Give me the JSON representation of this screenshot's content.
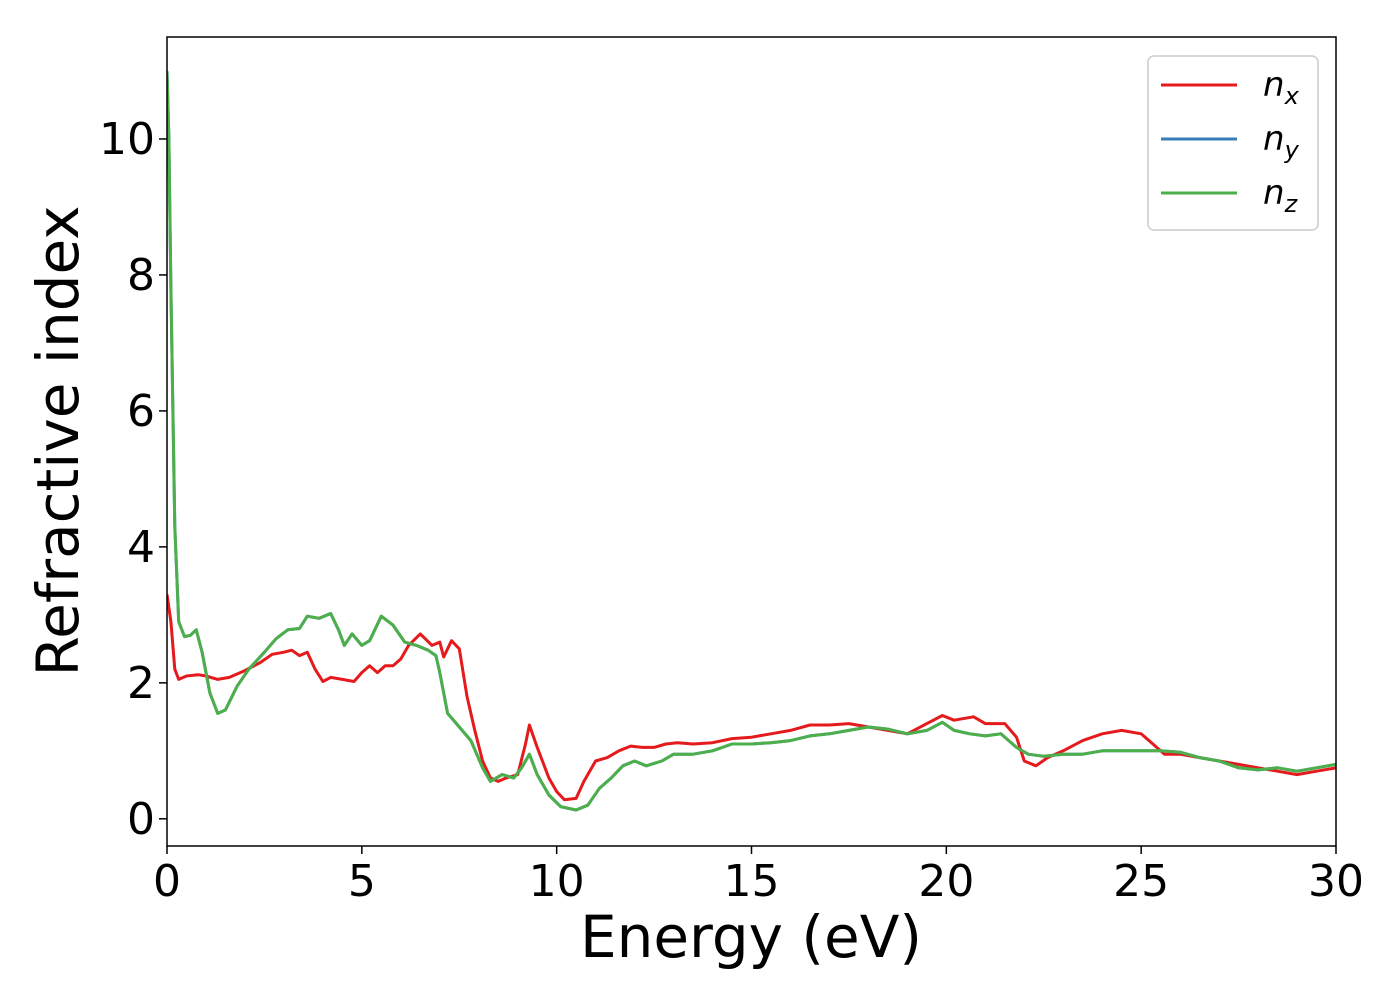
{
  "chart_data": {
    "type": "line",
    "title": "",
    "xlabel": "Energy (eV)",
    "ylabel": "Refractive index",
    "xlim": [
      0,
      30
    ],
    "ylim": [
      -0.4,
      11.5
    ],
    "xticks": [
      0,
      5,
      10,
      15,
      20,
      25,
      30
    ],
    "yticks": [
      0,
      2,
      4,
      6,
      8,
      10
    ],
    "grid": false,
    "legend_position": "top-right",
    "series": [
      {
        "name": "n_x",
        "legend_main": "n",
        "legend_sub": "x",
        "color": "#e41a1c",
        "points": [
          [
            0,
            3.3
          ],
          [
            0.1,
            2.9
          ],
          [
            0.2,
            2.2
          ],
          [
            0.3,
            2.05
          ],
          [
            0.5,
            2.1
          ],
          [
            0.8,
            2.12
          ],
          [
            1,
            2.1
          ],
          [
            1.3,
            2.05
          ],
          [
            1.6,
            2.08
          ],
          [
            2,
            2.18
          ],
          [
            2.4,
            2.3
          ],
          [
            2.7,
            2.42
          ],
          [
            3.0,
            2.45
          ],
          [
            3.2,
            2.48
          ],
          [
            3.4,
            2.4
          ],
          [
            3.6,
            2.45
          ],
          [
            3.8,
            2.2
          ],
          [
            4.0,
            2.02
          ],
          [
            4.2,
            2.08
          ],
          [
            4.5,
            2.05
          ],
          [
            4.8,
            2.02
          ],
          [
            5.0,
            2.15
          ],
          [
            5.2,
            2.25
          ],
          [
            5.4,
            2.15
          ],
          [
            5.6,
            2.25
          ],
          [
            5.8,
            2.25
          ],
          [
            6.0,
            2.35
          ],
          [
            6.2,
            2.55
          ],
          [
            6.5,
            2.72
          ],
          [
            6.8,
            2.55
          ],
          [
            7.0,
            2.6
          ],
          [
            7.1,
            2.38
          ],
          [
            7.3,
            2.62
          ],
          [
            7.5,
            2.5
          ],
          [
            7.7,
            1.8
          ],
          [
            7.9,
            1.3
          ],
          [
            8.1,
            0.85
          ],
          [
            8.3,
            0.6
          ],
          [
            8.5,
            0.55
          ],
          [
            8.7,
            0.6
          ],
          [
            9.0,
            0.65
          ],
          [
            9.2,
            1.1
          ],
          [
            9.3,
            1.38
          ],
          [
            9.5,
            1.05
          ],
          [
            9.8,
            0.6
          ],
          [
            10.0,
            0.4
          ],
          [
            10.2,
            0.28
          ],
          [
            10.5,
            0.3
          ],
          [
            10.7,
            0.55
          ],
          [
            11.0,
            0.85
          ],
          [
            11.3,
            0.9
          ],
          [
            11.6,
            1.0
          ],
          [
            11.9,
            1.07
          ],
          [
            12.2,
            1.05
          ],
          [
            12.5,
            1.05
          ],
          [
            12.8,
            1.1
          ],
          [
            13.1,
            1.12
          ],
          [
            13.5,
            1.1
          ],
          [
            14.0,
            1.12
          ],
          [
            14.5,
            1.18
          ],
          [
            15.0,
            1.2
          ],
          [
            15.5,
            1.25
          ],
          [
            16.0,
            1.3
          ],
          [
            16.5,
            1.38
          ],
          [
            17.0,
            1.38
          ],
          [
            17.5,
            1.4
          ],
          [
            18.0,
            1.35
          ],
          [
            18.5,
            1.3
          ],
          [
            19.0,
            1.25
          ],
          [
            19.5,
            1.4
          ],
          [
            19.9,
            1.52
          ],
          [
            20.2,
            1.45
          ],
          [
            20.7,
            1.5
          ],
          [
            21.0,
            1.4
          ],
          [
            21.5,
            1.4
          ],
          [
            21.8,
            1.2
          ],
          [
            22.0,
            0.85
          ],
          [
            22.3,
            0.78
          ],
          [
            22.6,
            0.9
          ],
          [
            23.0,
            1.0
          ],
          [
            23.5,
            1.15
          ],
          [
            24.0,
            1.25
          ],
          [
            24.5,
            1.3
          ],
          [
            25.0,
            1.25
          ],
          [
            25.3,
            1.1
          ],
          [
            25.6,
            0.95
          ],
          [
            26.0,
            0.95
          ],
          [
            26.5,
            0.9
          ],
          [
            27.0,
            0.85
          ],
          [
            27.5,
            0.8
          ],
          [
            28.0,
            0.75
          ],
          [
            28.5,
            0.7
          ],
          [
            29.0,
            0.65
          ],
          [
            29.5,
            0.7
          ],
          [
            30.0,
            0.75
          ]
        ]
      },
      {
        "name": "n_y",
        "legend_main": "n",
        "legend_sub": "y",
        "color": "#377eb8",
        "points": [
          [
            0,
            11.0
          ],
          [
            0.05,
            10.0
          ],
          [
            0.1,
            7.8
          ],
          [
            0.2,
            4.3
          ],
          [
            0.3,
            2.9
          ],
          [
            0.45,
            2.68
          ],
          [
            0.6,
            2.7
          ],
          [
            0.75,
            2.78
          ],
          [
            0.9,
            2.45
          ],
          [
            1.1,
            1.85
          ],
          [
            1.3,
            1.55
          ],
          [
            1.5,
            1.6
          ],
          [
            1.8,
            1.95
          ],
          [
            2.1,
            2.2
          ],
          [
            2.5,
            2.45
          ],
          [
            2.8,
            2.65
          ],
          [
            3.1,
            2.78
          ],
          [
            3.4,
            2.8
          ],
          [
            3.6,
            2.98
          ],
          [
            3.9,
            2.95
          ],
          [
            4.2,
            3.02
          ],
          [
            4.4,
            2.78
          ],
          [
            4.55,
            2.55
          ],
          [
            4.75,
            2.72
          ],
          [
            5.0,
            2.55
          ],
          [
            5.2,
            2.62
          ],
          [
            5.5,
            2.98
          ],
          [
            5.8,
            2.85
          ],
          [
            6.1,
            2.6
          ],
          [
            6.4,
            2.55
          ],
          [
            6.7,
            2.48
          ],
          [
            6.9,
            2.4
          ],
          [
            7.0,
            2.15
          ],
          [
            7.2,
            1.55
          ],
          [
            7.5,
            1.35
          ],
          [
            7.8,
            1.15
          ],
          [
            8.1,
            0.75
          ],
          [
            8.3,
            0.55
          ],
          [
            8.6,
            0.65
          ],
          [
            8.9,
            0.6
          ],
          [
            9.1,
            0.75
          ],
          [
            9.3,
            0.95
          ],
          [
            9.5,
            0.65
          ],
          [
            9.8,
            0.35
          ],
          [
            10.1,
            0.18
          ],
          [
            10.5,
            0.13
          ],
          [
            10.8,
            0.2
          ],
          [
            11.1,
            0.45
          ],
          [
            11.4,
            0.6
          ],
          [
            11.7,
            0.78
          ],
          [
            12.0,
            0.85
          ],
          [
            12.3,
            0.78
          ],
          [
            12.7,
            0.85
          ],
          [
            13.0,
            0.95
          ],
          [
            13.5,
            0.95
          ],
          [
            14.0,
            1.0
          ],
          [
            14.5,
            1.1
          ],
          [
            15.0,
            1.1
          ],
          [
            15.5,
            1.12
          ],
          [
            16.0,
            1.15
          ],
          [
            16.5,
            1.22
          ],
          [
            17.0,
            1.25
          ],
          [
            17.5,
            1.3
          ],
          [
            18.0,
            1.35
          ],
          [
            18.5,
            1.32
          ],
          [
            19.0,
            1.25
          ],
          [
            19.5,
            1.3
          ],
          [
            19.9,
            1.42
          ],
          [
            20.2,
            1.3
          ],
          [
            20.6,
            1.25
          ],
          [
            21.0,
            1.22
          ],
          [
            21.4,
            1.25
          ],
          [
            21.8,
            1.05
          ],
          [
            22.1,
            0.95
          ],
          [
            22.5,
            0.92
          ],
          [
            23.0,
            0.95
          ],
          [
            23.5,
            0.95
          ],
          [
            24.0,
            1.0
          ],
          [
            24.5,
            1.0
          ],
          [
            25.0,
            1.0
          ],
          [
            25.5,
            1.0
          ],
          [
            26.0,
            0.98
          ],
          [
            26.5,
            0.9
          ],
          [
            27.0,
            0.85
          ],
          [
            27.5,
            0.75
          ],
          [
            28.0,
            0.72
          ],
          [
            28.5,
            0.75
          ],
          [
            29.0,
            0.7
          ],
          [
            29.5,
            0.75
          ],
          [
            30.0,
            0.8
          ]
        ]
      },
      {
        "name": "n_z",
        "legend_main": "n",
        "legend_sub": "z",
        "color": "#4daf4a",
        "points": [
          [
            0,
            11.0
          ],
          [
            0.05,
            10.0
          ],
          [
            0.1,
            7.8
          ],
          [
            0.2,
            4.3
          ],
          [
            0.3,
            2.9
          ],
          [
            0.45,
            2.68
          ],
          [
            0.6,
            2.7
          ],
          [
            0.75,
            2.78
          ],
          [
            0.9,
            2.45
          ],
          [
            1.1,
            1.85
          ],
          [
            1.3,
            1.55
          ],
          [
            1.5,
            1.6
          ],
          [
            1.8,
            1.95
          ],
          [
            2.1,
            2.2
          ],
          [
            2.5,
            2.45
          ],
          [
            2.8,
            2.65
          ],
          [
            3.1,
            2.78
          ],
          [
            3.4,
            2.8
          ],
          [
            3.6,
            2.98
          ],
          [
            3.9,
            2.95
          ],
          [
            4.2,
            3.02
          ],
          [
            4.4,
            2.78
          ],
          [
            4.55,
            2.55
          ],
          [
            4.75,
            2.72
          ],
          [
            5.0,
            2.55
          ],
          [
            5.2,
            2.62
          ],
          [
            5.5,
            2.98
          ],
          [
            5.8,
            2.85
          ],
          [
            6.1,
            2.6
          ],
          [
            6.4,
            2.55
          ],
          [
            6.7,
            2.48
          ],
          [
            6.9,
            2.4
          ],
          [
            7.0,
            2.15
          ],
          [
            7.2,
            1.55
          ],
          [
            7.5,
            1.35
          ],
          [
            7.8,
            1.15
          ],
          [
            8.1,
            0.75
          ],
          [
            8.3,
            0.55
          ],
          [
            8.6,
            0.65
          ],
          [
            8.9,
            0.6
          ],
          [
            9.1,
            0.75
          ],
          [
            9.3,
            0.95
          ],
          [
            9.5,
            0.65
          ],
          [
            9.8,
            0.35
          ],
          [
            10.1,
            0.18
          ],
          [
            10.5,
            0.13
          ],
          [
            10.8,
            0.2
          ],
          [
            11.1,
            0.45
          ],
          [
            11.4,
            0.6
          ],
          [
            11.7,
            0.78
          ],
          [
            12.0,
            0.85
          ],
          [
            12.3,
            0.78
          ],
          [
            12.7,
            0.85
          ],
          [
            13.0,
            0.95
          ],
          [
            13.5,
            0.95
          ],
          [
            14.0,
            1.0
          ],
          [
            14.5,
            1.1
          ],
          [
            15.0,
            1.1
          ],
          [
            15.5,
            1.12
          ],
          [
            16.0,
            1.15
          ],
          [
            16.5,
            1.22
          ],
          [
            17.0,
            1.25
          ],
          [
            17.5,
            1.3
          ],
          [
            18.0,
            1.35
          ],
          [
            18.5,
            1.32
          ],
          [
            19.0,
            1.25
          ],
          [
            19.5,
            1.3
          ],
          [
            19.9,
            1.42
          ],
          [
            20.2,
            1.3
          ],
          [
            20.6,
            1.25
          ],
          [
            21.0,
            1.22
          ],
          [
            21.4,
            1.25
          ],
          [
            21.8,
            1.05
          ],
          [
            22.1,
            0.95
          ],
          [
            22.5,
            0.92
          ],
          [
            23.0,
            0.95
          ],
          [
            23.5,
            0.95
          ],
          [
            24.0,
            1.0
          ],
          [
            24.5,
            1.0
          ],
          [
            25.0,
            1.0
          ],
          [
            25.5,
            1.0
          ],
          [
            26.0,
            0.98
          ],
          [
            26.5,
            0.9
          ],
          [
            27.0,
            0.85
          ],
          [
            27.5,
            0.75
          ],
          [
            28.0,
            0.72
          ],
          [
            28.5,
            0.75
          ],
          [
            29.0,
            0.7
          ],
          [
            29.5,
            0.75
          ],
          [
            30.0,
            0.8
          ]
        ]
      }
    ]
  }
}
